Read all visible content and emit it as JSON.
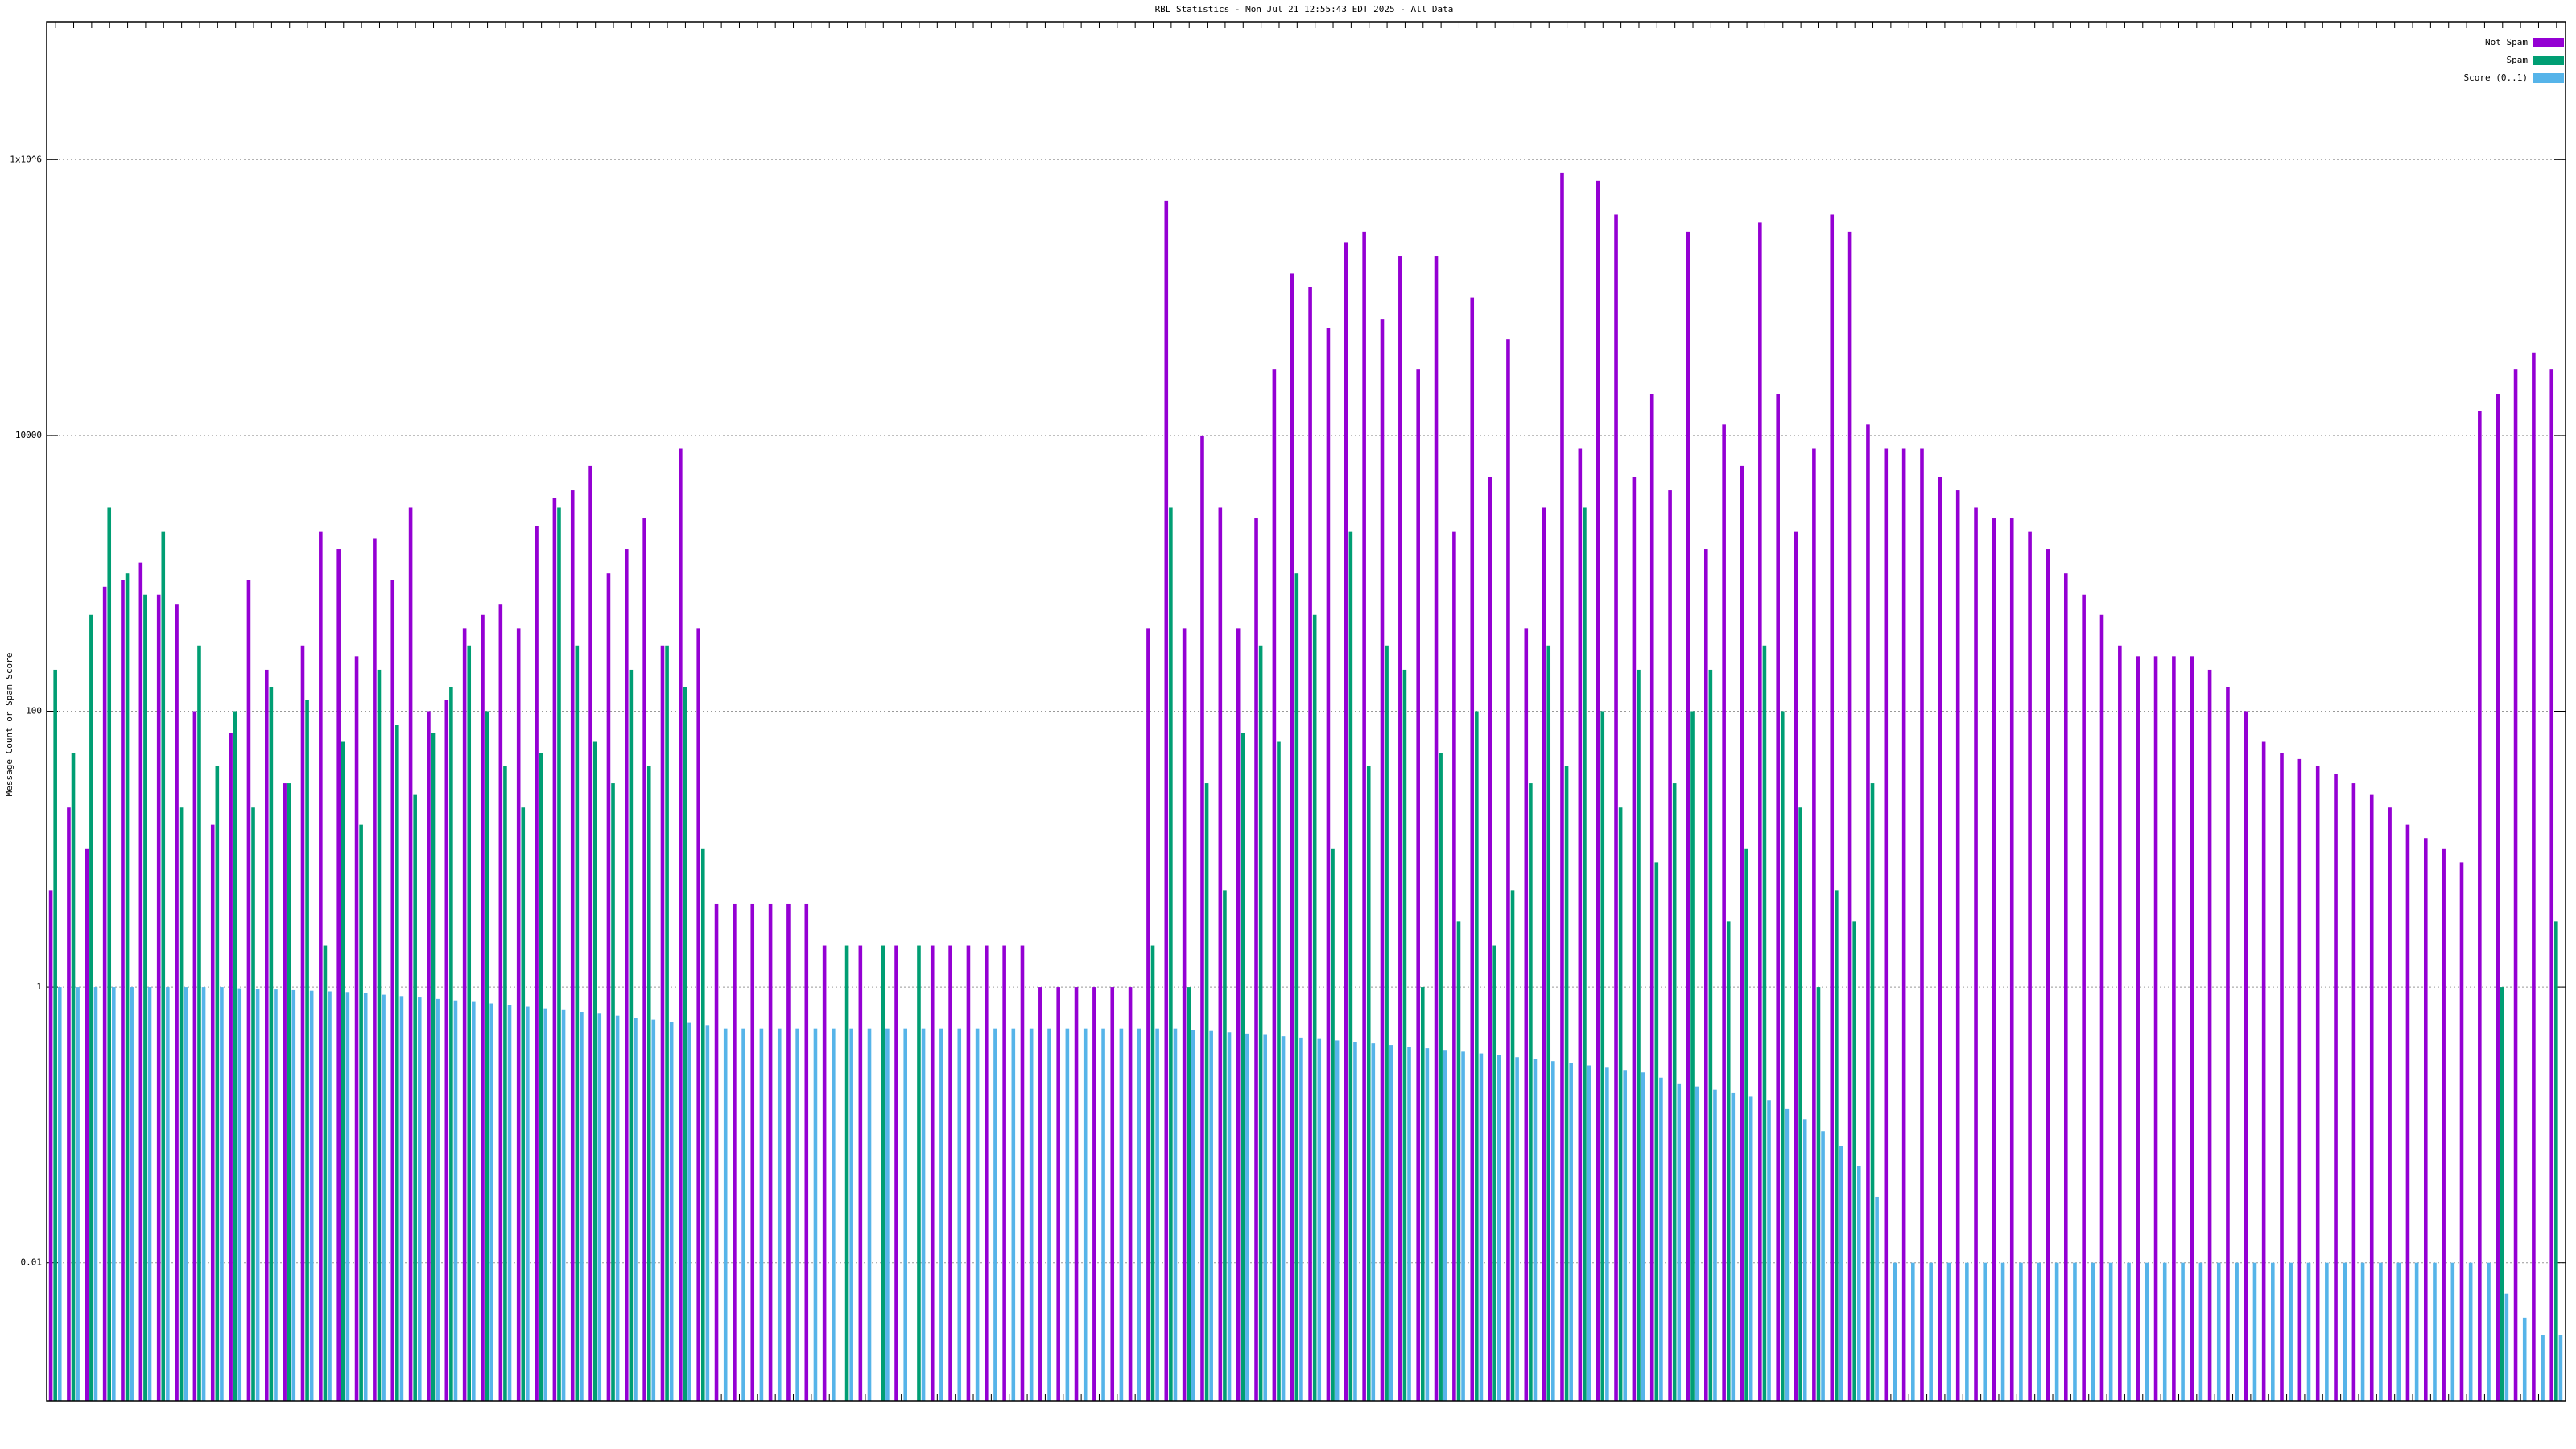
{
  "chart_data": {
    "type": "bar",
    "title": "RBL Statistics - Mon Jul 21 12:55:43 EDT 2025 - All Data",
    "ylabel": "Message Count or Spam Score",
    "log_scale": true,
    "grid": true,
    "legend_position": "top-right",
    "ylim": [
      0.001,
      10000000
    ],
    "yticks": [
      0.01,
      1,
      100,
      10000,
      {
        "value": 1000000,
        "label": "1x10^6"
      }
    ],
    "categories": [
      null,
      null,
      null,
      null,
      null,
      null,
      null,
      null,
      null,
      null,
      null,
      null,
      null,
      null,
      null,
      null,
      null,
      null,
      null,
      null,
      null,
      null,
      null,
      null,
      null,
      null,
      null,
      null,
      null,
      null,
      null,
      null,
      null,
      null,
      null,
      null,
      null,
      null,
      null,
      null,
      null,
      null,
      null,
      null,
      null,
      null,
      null,
      null,
      null,
      null,
      null,
      null,
      null,
      null,
      null,
      null,
      null,
      null,
      null,
      null,
      null,
      null,
      null,
      null,
      null,
      null,
      null,
      null,
      null,
      null,
      null,
      null,
      null,
      null,
      null,
      null,
      null,
      null,
      null,
      null,
      null,
      null,
      null,
      null,
      null,
      null,
      null,
      null,
      null,
      null,
      null,
      null,
      null,
      null,
      null,
      null,
      null,
      null,
      null,
      null,
      null,
      null,
      null,
      null,
      null,
      null,
      null,
      null,
      null,
      null,
      null,
      null,
      null,
      null,
      null,
      null,
      null,
      null,
      null,
      null,
      null,
      null,
      null,
      null,
      null,
      null,
      null,
      null,
      null,
      null,
      null,
      null,
      null,
      null,
      null,
      null,
      null,
      null,
      null,
      null
    ],
    "series": [
      {
        "name": "Not Spam",
        "color": "#9400d3",
        "values": [
          5,
          20,
          10,
          800,
          900,
          1200,
          700,
          600,
          100,
          15,
          70,
          900,
          200,
          30,
          300,
          2000,
          1500,
          250,
          1800,
          900,
          3000,
          100,
          120,
          400,
          500,
          600,
          400,
          2200,
          3500,
          4000,
          6000,
          1000,
          1500,
          2500,
          300,
          8000,
          400,
          4,
          4,
          4,
          4,
          4,
          4,
          2,
          null,
          2,
          null,
          2,
          null,
          2,
          2,
          2,
          2,
          2,
          2,
          1,
          1,
          1,
          1,
          1,
          1,
          400,
          500000,
          400,
          10000,
          3000,
          400,
          2500,
          30000,
          150000,
          120000,
          60000,
          250000,
          300000,
          70000,
          200000,
          30000,
          200000,
          2000,
          100000,
          5000,
          50000,
          400,
          3000,
          800000,
          8000,
          700000,
          400000,
          5000,
          20000,
          4000,
          300000,
          1500,
          12000,
          6000,
          350000,
          20000,
          2000,
          8000,
          400000,
          300000,
          12000,
          8000,
          8000,
          8000,
          5000,
          4000,
          3000,
          2500,
          2500,
          2000,
          1500,
          1000,
          700,
          500,
          300,
          250,
          250,
          250,
          250,
          200,
          150,
          100,
          60,
          50,
          45,
          40,
          35,
          30,
          25,
          20,
          15,
          12,
          10,
          8,
          15000,
          20000,
          30000,
          40000,
          30000
        ]
      },
      {
        "name": "Spam",
        "color": "#009e73",
        "values": [
          200,
          50,
          500,
          3000,
          1000,
          700,
          2000,
          20,
          300,
          40,
          100,
          20,
          150,
          30,
          120,
          2,
          60,
          15,
          200,
          80,
          25,
          70,
          150,
          300,
          100,
          40,
          20,
          50,
          3000,
          300,
          60,
          30,
          200,
          40,
          300,
          150,
          10,
          null,
          null,
          null,
          null,
          null,
          null,
          null,
          2,
          null,
          2,
          null,
          2,
          null,
          null,
          null,
          null,
          null,
          null,
          null,
          null,
          null,
          null,
          null,
          null,
          2,
          3000,
          1,
          30,
          5,
          70,
          300,
          60,
          1000,
          500,
          10,
          2000,
          40,
          300,
          200,
          1,
          50,
          3,
          100,
          2,
          5,
          30,
          300,
          40,
          3000,
          100,
          20,
          200,
          8,
          30,
          100,
          200,
          3,
          10,
          300,
          100,
          20,
          1,
          5,
          3,
          30,
          null,
          null,
          null,
          null,
          null,
          null,
          null,
          null,
          null,
          null,
          null,
          null,
          null,
          null,
          null,
          null,
          null,
          null,
          null,
          null,
          null,
          null,
          null,
          null,
          null,
          null,
          null,
          null,
          null,
          null,
          null,
          null,
          null,
          null,
          1,
          null,
          null,
          3
        ]
      },
      {
        "name": "Score (0..1)",
        "color": "#56b4e9",
        "values": [
          1,
          1,
          1,
          1,
          1,
          1,
          1,
          1,
          1,
          1,
          0.98,
          0.97,
          0.96,
          0.95,
          0.94,
          0.93,
          0.92,
          0.9,
          0.88,
          0.86,
          0.84,
          0.82,
          0.8,
          0.78,
          0.76,
          0.74,
          0.72,
          0.7,
          0.68,
          0.66,
          0.64,
          0.62,
          0.6,
          0.58,
          0.56,
          0.55,
          0.53,
          0.5,
          0.5,
          0.5,
          0.5,
          0.5,
          0.5,
          0.5,
          0.5,
          0.5,
          0.5,
          0.5,
          0.5,
          0.5,
          0.5,
          0.5,
          0.5,
          0.5,
          0.5,
          0.5,
          0.5,
          0.5,
          0.5,
          0.5,
          0.5,
          0.5,
          0.5,
          0.49,
          0.48,
          0.47,
          0.46,
          0.45,
          0.44,
          0.43,
          0.42,
          0.41,
          0.4,
          0.39,
          0.38,
          0.37,
          0.36,
          0.35,
          0.34,
          0.33,
          0.32,
          0.31,
          0.3,
          0.29,
          0.28,
          0.27,
          0.26,
          0.25,
          0.24,
          0.22,
          0.2,
          0.19,
          0.18,
          0.17,
          0.16,
          0.15,
          0.13,
          0.11,
          0.09,
          0.07,
          0.05,
          0.03,
          0.01,
          0.01,
          0.01,
          0.01,
          0.01,
          0.01,
          0.01,
          0.01,
          0.01,
          0.01,
          0.01,
          0.01,
          0.01,
          0.01,
          0.01,
          0.01,
          0.01,
          0.01,
          0.01,
          0.01,
          0.01,
          0.01,
          0.01,
          0.01,
          0.01,
          0.01,
          0.01,
          0.01,
          0.01,
          0.01,
          0.01,
          0.01,
          0.01,
          0.01,
          0.006,
          0.004,
          0.003,
          0.003
        ]
      }
    ]
  }
}
